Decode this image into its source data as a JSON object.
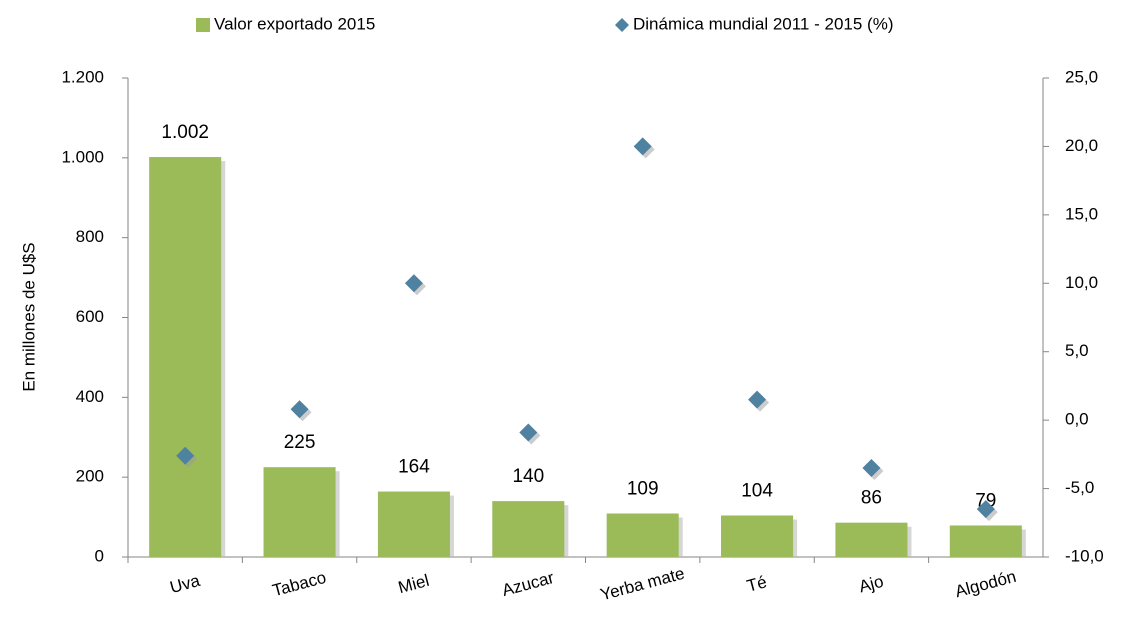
{
  "chart_data": {
    "type": "bar",
    "y_label": "En millones de U$S",
    "categories": [
      "Uva",
      "Tabaco",
      "Miel",
      "Azucar",
      "Yerba mate",
      "Té",
      "Ajo",
      "Algodón"
    ],
    "series": [
      {
        "name": "Valor exportado 2015",
        "color": "#9bbb59",
        "type": "bar",
        "values": [
          1002,
          225,
          164,
          140,
          109,
          104,
          86,
          79
        ],
        "value_labels": [
          "1.002",
          "225",
          "164",
          "140",
          "109",
          "104",
          "86",
          "79"
        ]
      },
      {
        "name": "Dinámica mundial 2011 - 2015 (%)",
        "color": "#4f81a0",
        "type": "scatter",
        "axis": "y2",
        "values": [
          -2.6,
          0.8,
          10.0,
          -0.9,
          20.0,
          1.5,
          -3.5,
          -6.5
        ]
      }
    ],
    "ylim": [
      0,
      1200
    ],
    "yticks": [
      0,
      200,
      400,
      600,
      800,
      {
        "value": 1000,
        "label": "1.000"
      },
      {
        "value": 1200,
        "label": "1.200"
      }
    ],
    "y2lim": [
      -10,
      25
    ],
    "y2ticks": [
      {
        "value": -10,
        "label": "-10,0"
      },
      {
        "value": -5,
        "label": "-5,0"
      },
      {
        "value": 0,
        "label": "0,0"
      },
      {
        "value": 5,
        "label": "5,0"
      },
      {
        "value": 10,
        "label": "10,0"
      },
      {
        "value": 15,
        "label": "15,0"
      },
      {
        "value": 20,
        "label": "20,0"
      },
      {
        "value": 25,
        "label": "25,0"
      }
    ],
    "legend": "top"
  }
}
